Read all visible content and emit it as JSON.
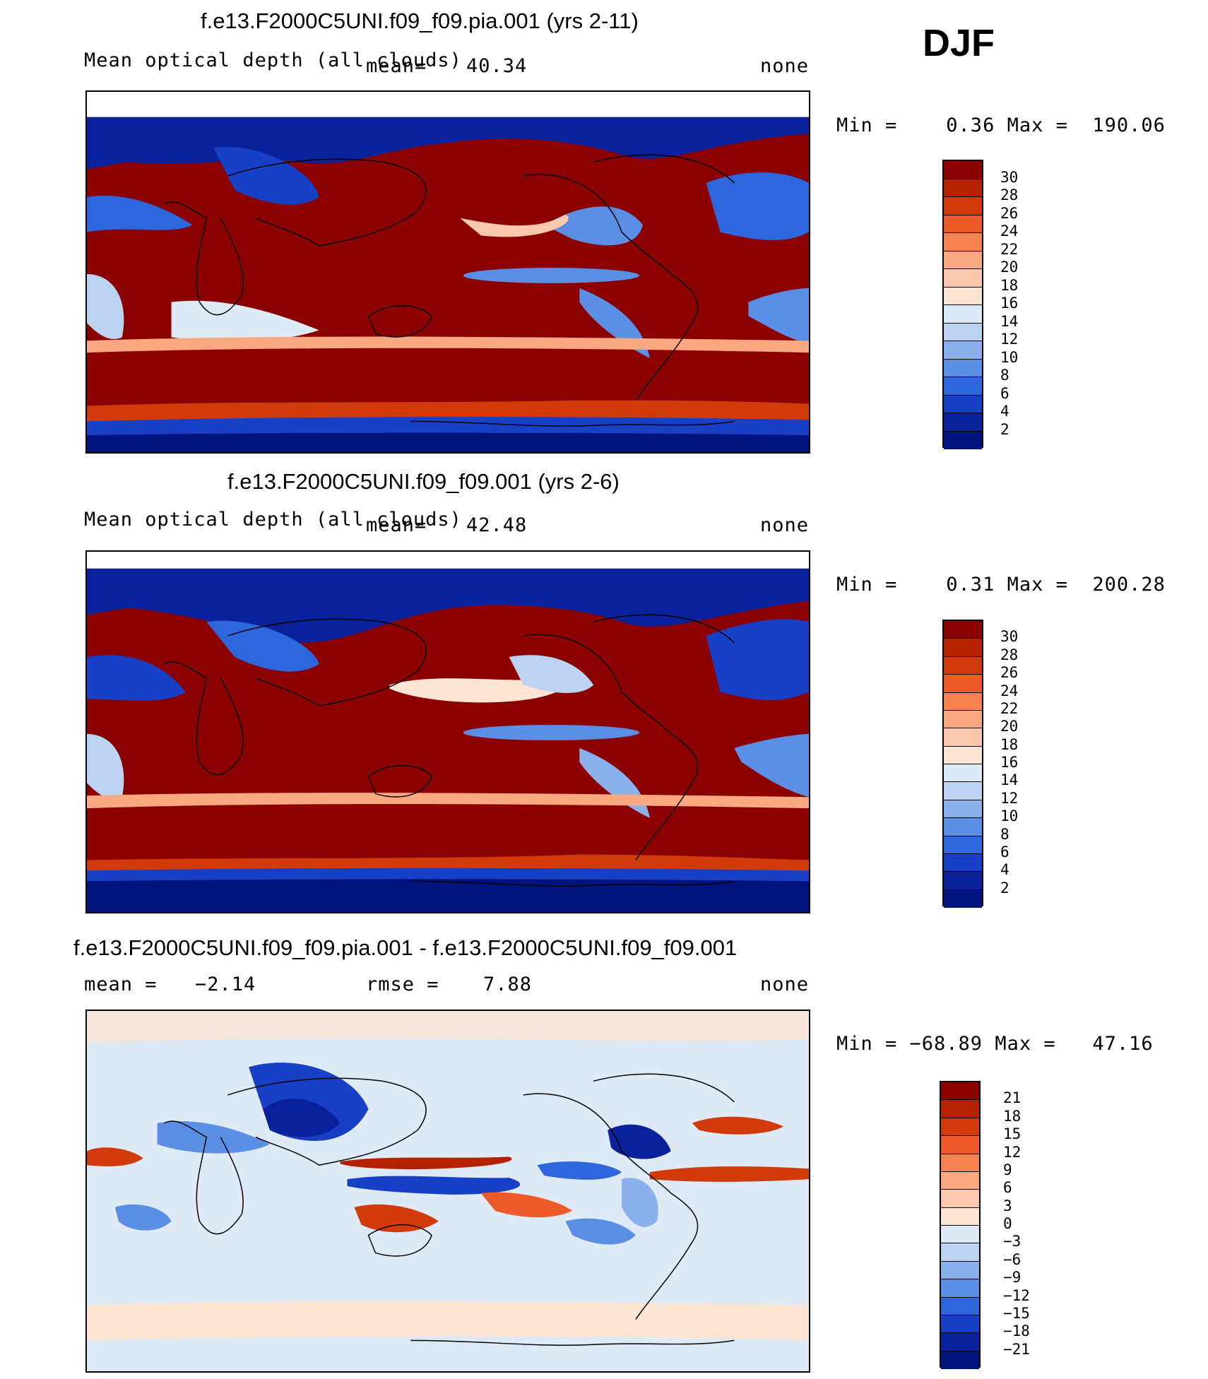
{
  "season": "DJF",
  "panels": [
    {
      "title": "f.e13.F2000C5UNI.f09_f09.pia.001 (yrs 2-11)",
      "variable": "Mean optical depth (all clouds)",
      "mean_label": "mean=",
      "mean_value": "40.34",
      "units": "none",
      "minmax": "Min =    0.36 Max =  190.06",
      "colorbar": {
        "labels": [
          "30",
          "28",
          "26",
          "24",
          "22",
          "20",
          "18",
          "16",
          "14",
          "12",
          "10",
          "8",
          "6",
          "4",
          "2"
        ],
        "colors": [
          "#8b0000",
          "#b22200",
          "#d13b0c",
          "#ed5a2a",
          "#f6834f",
          "#f9a882",
          "#fbc8ae",
          "#fde5d3",
          "#dfeaf7",
          "#bcd3f1",
          "#8bb1ec",
          "#5b8fe6",
          "#2e66de",
          "#1740c6",
          "#0a219c",
          "#00137d"
        ]
      }
    },
    {
      "title": "f.e13.F2000C5UNI.f09_f09.001 (yrs 2-6)",
      "variable": "Mean optical depth (all clouds)",
      "mean_label": "mean=",
      "mean_value": "42.48",
      "units": "none",
      "minmax": "Min =    0.31 Max =  200.28",
      "colorbar": {
        "labels": [
          "30",
          "28",
          "26",
          "24",
          "22",
          "20",
          "18",
          "16",
          "14",
          "12",
          "10",
          "8",
          "6",
          "4",
          "2"
        ],
        "colors": [
          "#8b0000",
          "#b22200",
          "#d13b0c",
          "#ed5a2a",
          "#f6834f",
          "#f9a882",
          "#fbc8ae",
          "#fde5d3",
          "#dfeaf7",
          "#bcd3f1",
          "#8bb1ec",
          "#5b8fe6",
          "#2e66de",
          "#1740c6",
          "#0a219c",
          "#00137d"
        ]
      }
    },
    {
      "title": "f.e13.F2000C5UNI.f09_f09.pia.001 - f.e13.F2000C5UNI.f09_f09.001",
      "mean_label": "mean =",
      "mean_value": "−2.14",
      "rmse_label": "rmse =",
      "rmse_value": "7.88",
      "units": "none",
      "minmax": "Min = −68.89 Max =   47.16",
      "colorbar": {
        "labels": [
          "21",
          "18",
          "15",
          "12",
          "9",
          "6",
          "3",
          "0",
          "−3",
          "−6",
          "−9",
          "−12",
          "−15",
          "−18",
          "−21"
        ],
        "colors": [
          "#8b0000",
          "#b22200",
          "#d13b0c",
          "#ed5a2a",
          "#f6834f",
          "#f9a882",
          "#fbc8ae",
          "#fde5d3",
          "#dfeaf7",
          "#bcd3f1",
          "#8bb1ec",
          "#5b8fe6",
          "#2e66de",
          "#1740c6",
          "#0a219c",
          "#00137d"
        ]
      }
    }
  ]
}
